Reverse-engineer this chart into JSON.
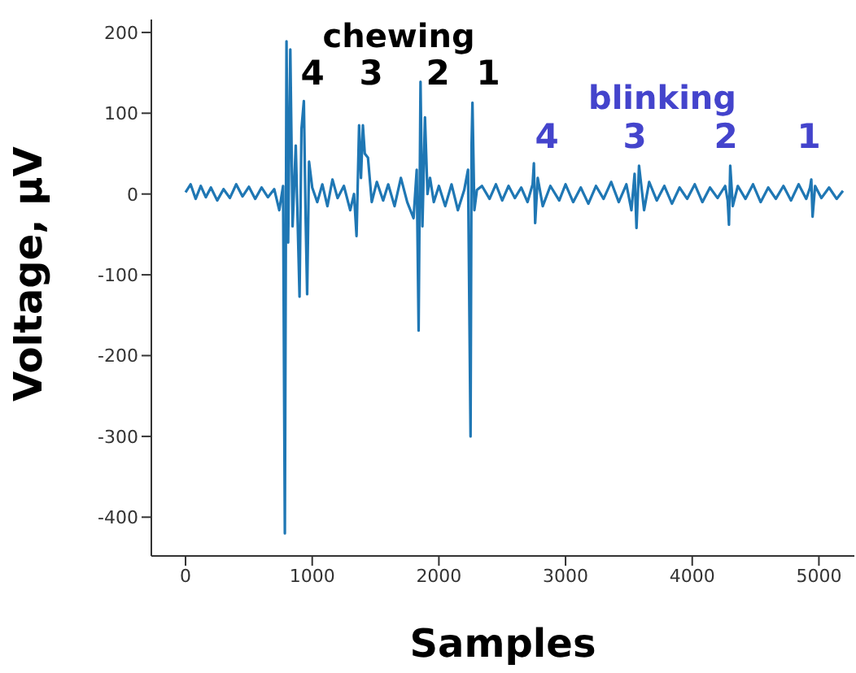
{
  "chart_data": {
    "type": "line",
    "xlabel": "Samples",
    "ylabel": "Voltage, μV",
    "x": [
      0,
      40,
      80,
      120,
      160,
      200,
      250,
      300,
      350,
      400,
      450,
      500,
      550,
      600,
      650,
      700,
      740,
      770,
      784,
      797,
      810,
      827,
      845,
      870,
      900,
      915,
      934,
      948,
      960,
      975,
      1000,
      1040,
      1080,
      1120,
      1160,
      1200,
      1250,
      1300,
      1330,
      1350,
      1370,
      1385,
      1400,
      1415,
      1440,
      1470,
      1510,
      1560,
      1600,
      1650,
      1700,
      1750,
      1800,
      1825,
      1840,
      1855,
      1870,
      1890,
      1910,
      1930,
      1960,
      2000,
      2050,
      2100,
      2150,
      2200,
      2230,
      2250,
      2258,
      2265,
      2280,
      2300,
      2340,
      2400,
      2450,
      2500,
      2550,
      2600,
      2650,
      2700,
      2740,
      2750,
      2760,
      2780,
      2820,
      2880,
      2950,
      3000,
      3060,
      3120,
      3180,
      3240,
      3300,
      3360,
      3420,
      3480,
      3520,
      3545,
      3560,
      3580,
      3620,
      3660,
      3720,
      3780,
      3840,
      3900,
      3960,
      4020,
      4080,
      4140,
      4200,
      4260,
      4280,
      4290,
      4300,
      4320,
      4360,
      4420,
      4480,
      4540,
      4600,
      4660,
      4720,
      4780,
      4840,
      4900,
      4930,
      4940,
      4950,
      4970,
      5020,
      5080,
      5140,
      5190
    ],
    "series": [
      {
        "color": "#1f77b4",
        "values": [
          2,
          12,
          -6,
          10,
          -4,
          8,
          -8,
          6,
          -5,
          12,
          -3,
          9,
          -6,
          8,
          -4,
          6,
          -20,
          10,
          -420,
          189,
          -60,
          179,
          -40,
          60,
          -127,
          80,
          115,
          -30,
          -124,
          40,
          8,
          -10,
          12,
          -15,
          18,
          -5,
          10,
          -20,
          0,
          -52,
          85,
          20,
          85,
          50,
          45,
          -10,
          15,
          -8,
          12,
          -15,
          20,
          -10,
          -30,
          30,
          -169,
          139,
          -40,
          95,
          0,
          20,
          -10,
          10,
          -15,
          12,
          -20,
          5,
          30,
          -300,
          60,
          113,
          -20,
          5,
          10,
          -6,
          12,
          -8,
          10,
          -5,
          8,
          -10,
          12,
          38,
          -36,
          20,
          -15,
          10,
          -8,
          12,
          -10,
          8,
          -12,
          10,
          -6,
          15,
          -10,
          12,
          -20,
          25,
          -42,
          35,
          -20,
          15,
          -8,
          10,
          -12,
          8,
          -6,
          12,
          -10,
          8,
          -5,
          10,
          -8,
          -38,
          35,
          -15,
          10,
          -6,
          12,
          -10,
          8,
          -6,
          10,
          -8,
          12,
          -6,
          8,
          18,
          -28,
          10,
          -5,
          8,
          -6,
          4
        ]
      }
    ],
    "xlim": [
      -270,
      5280
    ],
    "ylim": [
      -448,
      216
    ],
    "xticks": [
      0,
      1000,
      2000,
      3000,
      4000,
      5000
    ],
    "yticks": [
      -400,
      -300,
      -200,
      -100,
      0,
      100,
      200
    ],
    "annotations": [
      "chewing",
      "4",
      "3",
      "2",
      "1",
      "blinking",
      "4",
      "3",
      "2",
      "1"
    ]
  }
}
